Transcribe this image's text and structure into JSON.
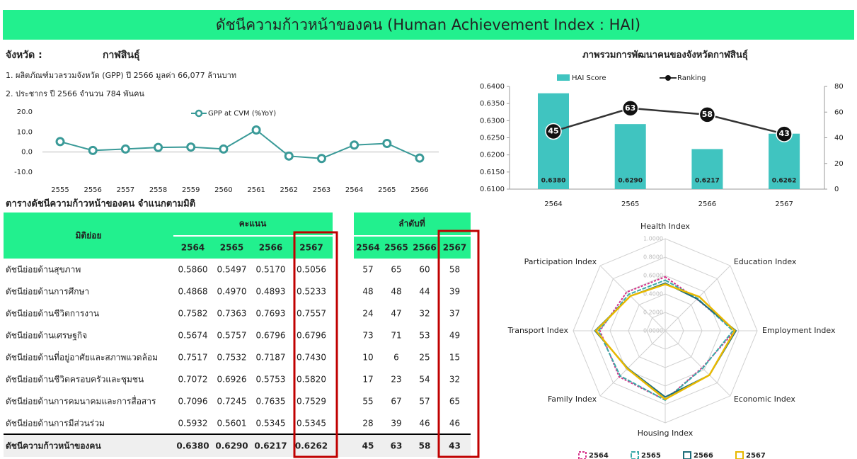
{
  "header": {
    "title": "ดัชนีความก้าวหน้าของคน (Human Achievement Index : HAI)"
  },
  "info": {
    "province_label": "จังหวัด :",
    "province": "กาฬสินธุ์",
    "lines": [
      "1. ผลิตภัณฑ์มวลรวมจังหวัด (GPP) ปี 2566 มูลค่า 66,077 ล้านบาท",
      "2. ประชากร ปี 2566 จำนวน 784 พันคน"
    ]
  },
  "chart_data": [
    {
      "type": "line",
      "categories": [
        "2555",
        "2556",
        "2557",
        "2558",
        "2559",
        "2560",
        "2561",
        "2562",
        "2563",
        "2564",
        "2565",
        "2566"
      ],
      "series": [
        {
          "name": "GPP at CVM (%YoY)",
          "color": "#3a9a98",
          "values": [
            5.2,
            0.8,
            1.5,
            2.3,
            2.5,
            1.5,
            11.0,
            -2.0,
            -3.2,
            3.5,
            4.3,
            -3.0
          ]
        }
      ],
      "ylim": [
        -10,
        20
      ],
      "yticks": [
        {
          "value": -10,
          "label": "-10.0"
        },
        {
          "value": 0,
          "label": "0.0"
        },
        {
          "value": 10,
          "label": "10.0"
        },
        {
          "value": 20,
          "label": "20.0"
        }
      ]
    },
    {
      "type": "combo",
      "title": "ภาพรวมการพัฒนาคนของจังหวัดกาฬสินธุ์",
      "categories": [
        "2564",
        "2565",
        "2566",
        "2567"
      ],
      "series": [
        {
          "name": "HAI Score",
          "type": "bar",
          "color": "#40c4c0",
          "values": [
            0.638,
            0.629,
            0.6217,
            0.6262
          ],
          "value_labels": [
            "0.6380",
            "0.6290",
            "0.6217",
            "0.6262"
          ]
        },
        {
          "name": "Ranking",
          "type": "line",
          "axis": "y2",
          "color": "#333333",
          "values": [
            45,
            63,
            58,
            43
          ]
        }
      ],
      "ylim": [
        0.61,
        0.64
      ],
      "yticks": [
        {
          "value": 0.61,
          "label": "0.6100"
        },
        {
          "value": 0.615,
          "label": "0.6150"
        },
        {
          "value": 0.62,
          "label": "0.6200"
        },
        {
          "value": 0.625,
          "label": "0.6250"
        },
        {
          "value": 0.63,
          "label": "0.6300"
        },
        {
          "value": 0.635,
          "label": "0.6350"
        },
        {
          "value": 0.64,
          "label": "0.6400"
        }
      ],
      "y2lim": [
        0,
        80
      ],
      "y2ticks": [
        0,
        20,
        40,
        60,
        80
      ]
    },
    {
      "type": "radar",
      "axes": [
        "Health Index",
        "Education Index",
        "Employment Index",
        "Economic Index",
        "Housing Index",
        "Family Index",
        "Transport Index",
        "Participation Index"
      ],
      "series": [
        {
          "name": "2564",
          "color": "#d6338a",
          "values": [
            0.586,
            0.4868,
            0.7582,
            0.5674,
            0.7517,
            0.7072,
            0.7096,
            0.5932
          ]
        },
        {
          "name": "2565",
          "color": "#3aaaa8",
          "values": [
            0.5497,
            0.497,
            0.7363,
            0.5757,
            0.7532,
            0.6926,
            0.7245,
            0.5601
          ]
        },
        {
          "name": "2566",
          "color": "#1f6e7a",
          "values": [
            0.517,
            0.4893,
            0.7693,
            0.6796,
            0.7187,
            0.5753,
            0.7635,
            0.5345
          ]
        },
        {
          "name": "2567",
          "color": "#e8b800",
          "values": [
            0.5056,
            0.5233,
            0.7557,
            0.6796,
            0.743,
            0.582,
            0.7529,
            0.5345
          ]
        }
      ],
      "rlim": [
        0,
        1
      ],
      "rticks": [
        {
          "value": 0,
          "label": "0.0000"
        },
        {
          "value": 0.2,
          "label": "0.2000"
        },
        {
          "value": 0.4,
          "label": "0.4000"
        },
        {
          "value": 0.6,
          "label": "0.6000"
        },
        {
          "value": 0.8,
          "label": "0.8000"
        },
        {
          "value": 1,
          "label": "1.0000"
        }
      ]
    }
  ],
  "table": {
    "title": "ตารางดัชนีความก้าวหน้าของคน จำแนกตามมิติ",
    "header": {
      "dimension": "มิติย่อย",
      "score": "คะแนน",
      "rank": "ลำดับที่",
      "years": [
        "2564",
        "2565",
        "2566",
        "2567"
      ]
    },
    "rows": [
      [
        "ดัชนีย่อยด้านสุขภาพ",
        "0.5860",
        "0.5497",
        "0.5170",
        "0.5056",
        "57",
        "65",
        "60",
        "58"
      ],
      [
        "ดัชนีย่อยด้านการศึกษา",
        "0.4868",
        "0.4970",
        "0.4893",
        "0.5233",
        "48",
        "48",
        "44",
        "39"
      ],
      [
        "ดัชนีย่อยด้านชีวิตการงาน",
        "0.7582",
        "0.7363",
        "0.7693",
        "0.7557",
        "24",
        "47",
        "32",
        "37"
      ],
      [
        "ดัชนีย่อยด้านเศรษฐกิจ",
        "0.5674",
        "0.5757",
        "0.6796",
        "0.6796",
        "73",
        "71",
        "53",
        "49"
      ],
      [
        "ดัชนีย่อยด้านที่อยู่อาศัยและสภาพแวดล้อม",
        "0.7517",
        "0.7532",
        "0.7187",
        "0.7430",
        "10",
        "6",
        "25",
        "15"
      ],
      [
        "ดัชนีย่อยด้านชีวิตครอบครัวและชุมชน",
        "0.7072",
        "0.6926",
        "0.5753",
        "0.5820",
        "17",
        "23",
        "54",
        "32"
      ],
      [
        "ดัชนีย่อยด้านการคมนาคมและการสื่อสาร",
        "0.7096",
        "0.7245",
        "0.7635",
        "0.7529",
        "55",
        "67",
        "57",
        "65"
      ],
      [
        "ดัชนีย่อยด้านการมีส่วนร่วม",
        "0.5932",
        "0.5601",
        "0.5345",
        "0.5345",
        "28",
        "39",
        "46",
        "46"
      ]
    ],
    "total": [
      "ดัชนีความก้าวหน้าของคน",
      "0.6380",
      "0.6290",
      "0.6217",
      "0.6262",
      "45",
      "63",
      "58",
      "43"
    ]
  }
}
